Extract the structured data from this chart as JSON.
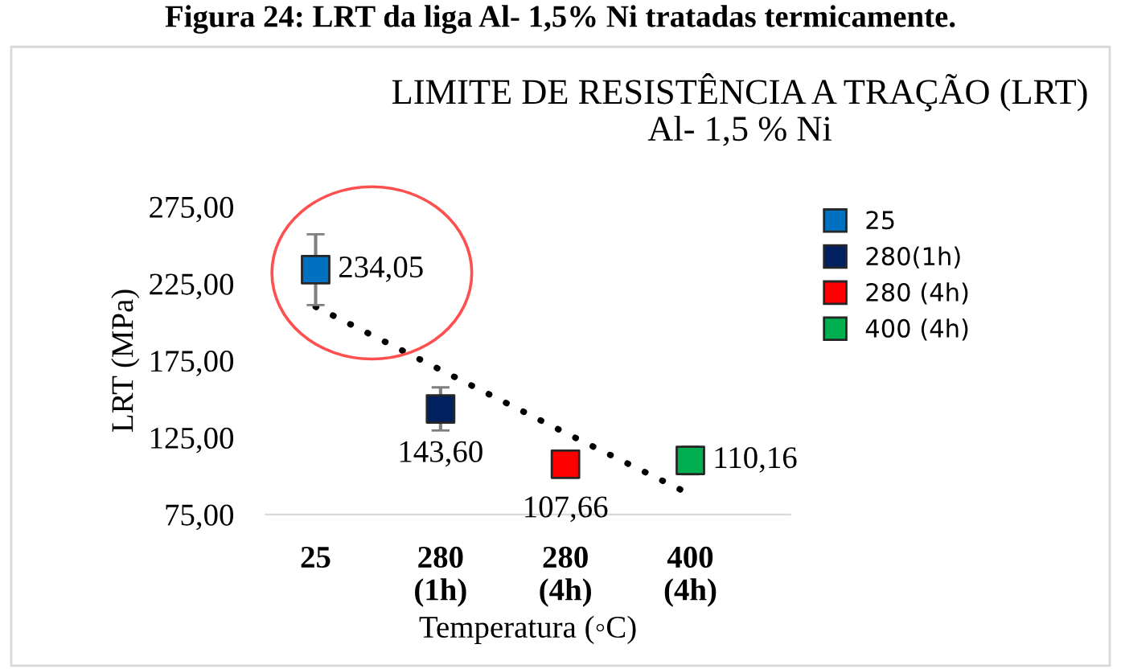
{
  "chart_data": {
    "type": "scatter",
    "title": "LIMITE DE RESISTÊNCIA A TRAÇÃO (LRT)",
    "subtitle": "Al- 1,5 % Ni",
    "xlabel": "Temperatura (◦C)",
    "ylabel": "LRT (MPa)",
    "annotations": [
      "Figura 24: LRT da liga Al- 1,5% Ni tratadas termicamente."
    ],
    "categories": [
      "25",
      "280\n(1h)",
      "280\n(4h)",
      "400\n(4h)"
    ],
    "series": [
      {
        "name": "25",
        "color": "#0070c0",
        "values": [
          234.05,
          null,
          null,
          null
        ],
        "errors": [
          23,
          null,
          null,
          null
        ],
        "value_labels": [
          "234,05",
          null,
          null,
          null
        ]
      },
      {
        "name": "280(1h)",
        "color": "#002060",
        "values": [
          null,
          143.6,
          null,
          null
        ],
        "errors": [
          null,
          14,
          null,
          null
        ],
        "value_labels": [
          null,
          "143,60",
          null,
          null
        ]
      },
      {
        "name": "280 (4h)",
        "color": "#ff0000",
        "values": [
          null,
          null,
          107.66,
          null
        ],
        "errors": [
          null,
          null,
          8,
          null
        ],
        "value_labels": [
          null,
          null,
          "107,66",
          null
        ]
      },
      {
        "name": "400 (4h)",
        "color": "#00b050",
        "values": [
          null,
          null,
          null,
          110.16
        ],
        "errors": [
          null,
          null,
          null,
          9
        ],
        "value_labels": [
          null,
          null,
          null,
          "110,16"
        ]
      },
      {
        "type": "line",
        "color": "#000000",
        "line_style": "dotted",
        "marker": "none",
        "values": [
          210,
          169,
          128,
          88
        ]
      }
    ],
    "ylim": [
      75,
      275
    ],
    "yticks": [
      {
        "value": 75,
        "label": "75,00"
      },
      {
        "value": 125,
        "label": "125,00"
      },
      {
        "value": 175,
        "label": "175,00"
      },
      {
        "value": 225,
        "label": "225,00"
      },
      {
        "value": 275,
        "label": "275,00"
      }
    ],
    "marker": "square",
    "grid": false,
    "legend": "top right"
  }
}
